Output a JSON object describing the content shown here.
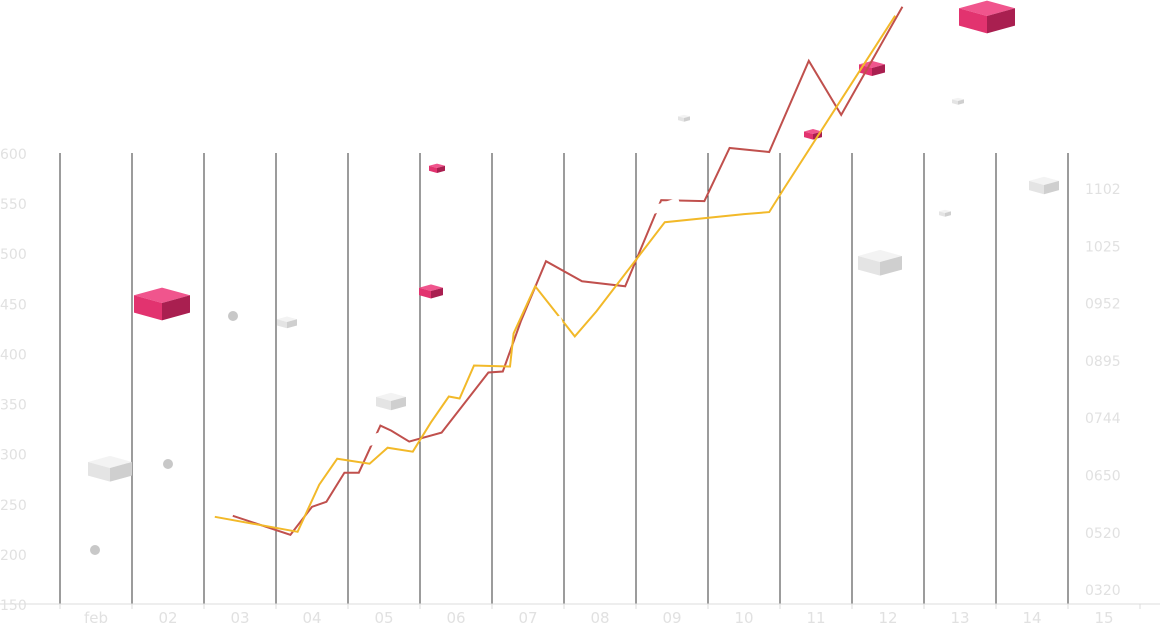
{
  "chart_data": {
    "type": "line",
    "categories": [
      "feb",
      "02",
      "03",
      "04",
      "05",
      "06",
      "07",
      "08",
      "09",
      "10",
      "11",
      "12",
      "13",
      "14",
      "15"
    ],
    "y_left": {
      "ticks": [
        "150",
        "200",
        "250",
        "300",
        "350",
        "400",
        "450",
        "500",
        "550",
        "600"
      ],
      "ylim": [
        150,
        600
      ]
    },
    "y_right": {
      "ticks": [
        "1102",
        "1025",
        "0952",
        "0895",
        "0744",
        "0650",
        "0520",
        "0320"
      ]
    },
    "grid": "vertical",
    "series": [
      {
        "color": "#c0504d",
        "points": [
          [
            2.4,
            238
          ],
          [
            3.2,
            219
          ],
          [
            3.5,
            247
          ],
          [
            3.7,
            252
          ],
          [
            3.95,
            281
          ],
          [
            4.15,
            281
          ],
          [
            4.45,
            328
          ],
          [
            4.6,
            323
          ],
          [
            4.85,
            312
          ],
          [
            5.3,
            321
          ],
          [
            5.95,
            381
          ],
          [
            6.15,
            382
          ],
          [
            6.4,
            432
          ],
          [
            6.75,
            492
          ],
          [
            7.25,
            472
          ],
          [
            7.85,
            467
          ],
          [
            8.35,
            553
          ],
          [
            8.95,
            552
          ],
          [
            9.3,
            605
          ],
          [
            9.85,
            601
          ],
          [
            10.4,
            692
          ],
          [
            10.85,
            638
          ],
          [
            11.7,
            746
          ]
        ]
      },
      {
        "color": "#f2b929",
        "points": [
          [
            2.15,
            237
          ],
          [
            3.3,
            222
          ],
          [
            3.6,
            269
          ],
          [
            3.85,
            295
          ],
          [
            4.3,
            290
          ],
          [
            4.55,
            306
          ],
          [
            4.9,
            302
          ],
          [
            5.15,
            331
          ],
          [
            5.4,
            357
          ],
          [
            5.55,
            355
          ],
          [
            5.75,
            388
          ],
          [
            6.25,
            387
          ],
          [
            6.3,
            420
          ],
          [
            6.6,
            467
          ],
          [
            7.15,
            417
          ],
          [
            7.45,
            442
          ],
          [
            8.4,
            531
          ],
          [
            9.5,
            539
          ],
          [
            9.85,
            541
          ],
          [
            10.05,
            564
          ],
          [
            11.6,
            737
          ]
        ]
      }
    ],
    "cube_colors": {
      "pink": "#e6397a",
      "grey": "#d9d9d9"
    }
  }
}
